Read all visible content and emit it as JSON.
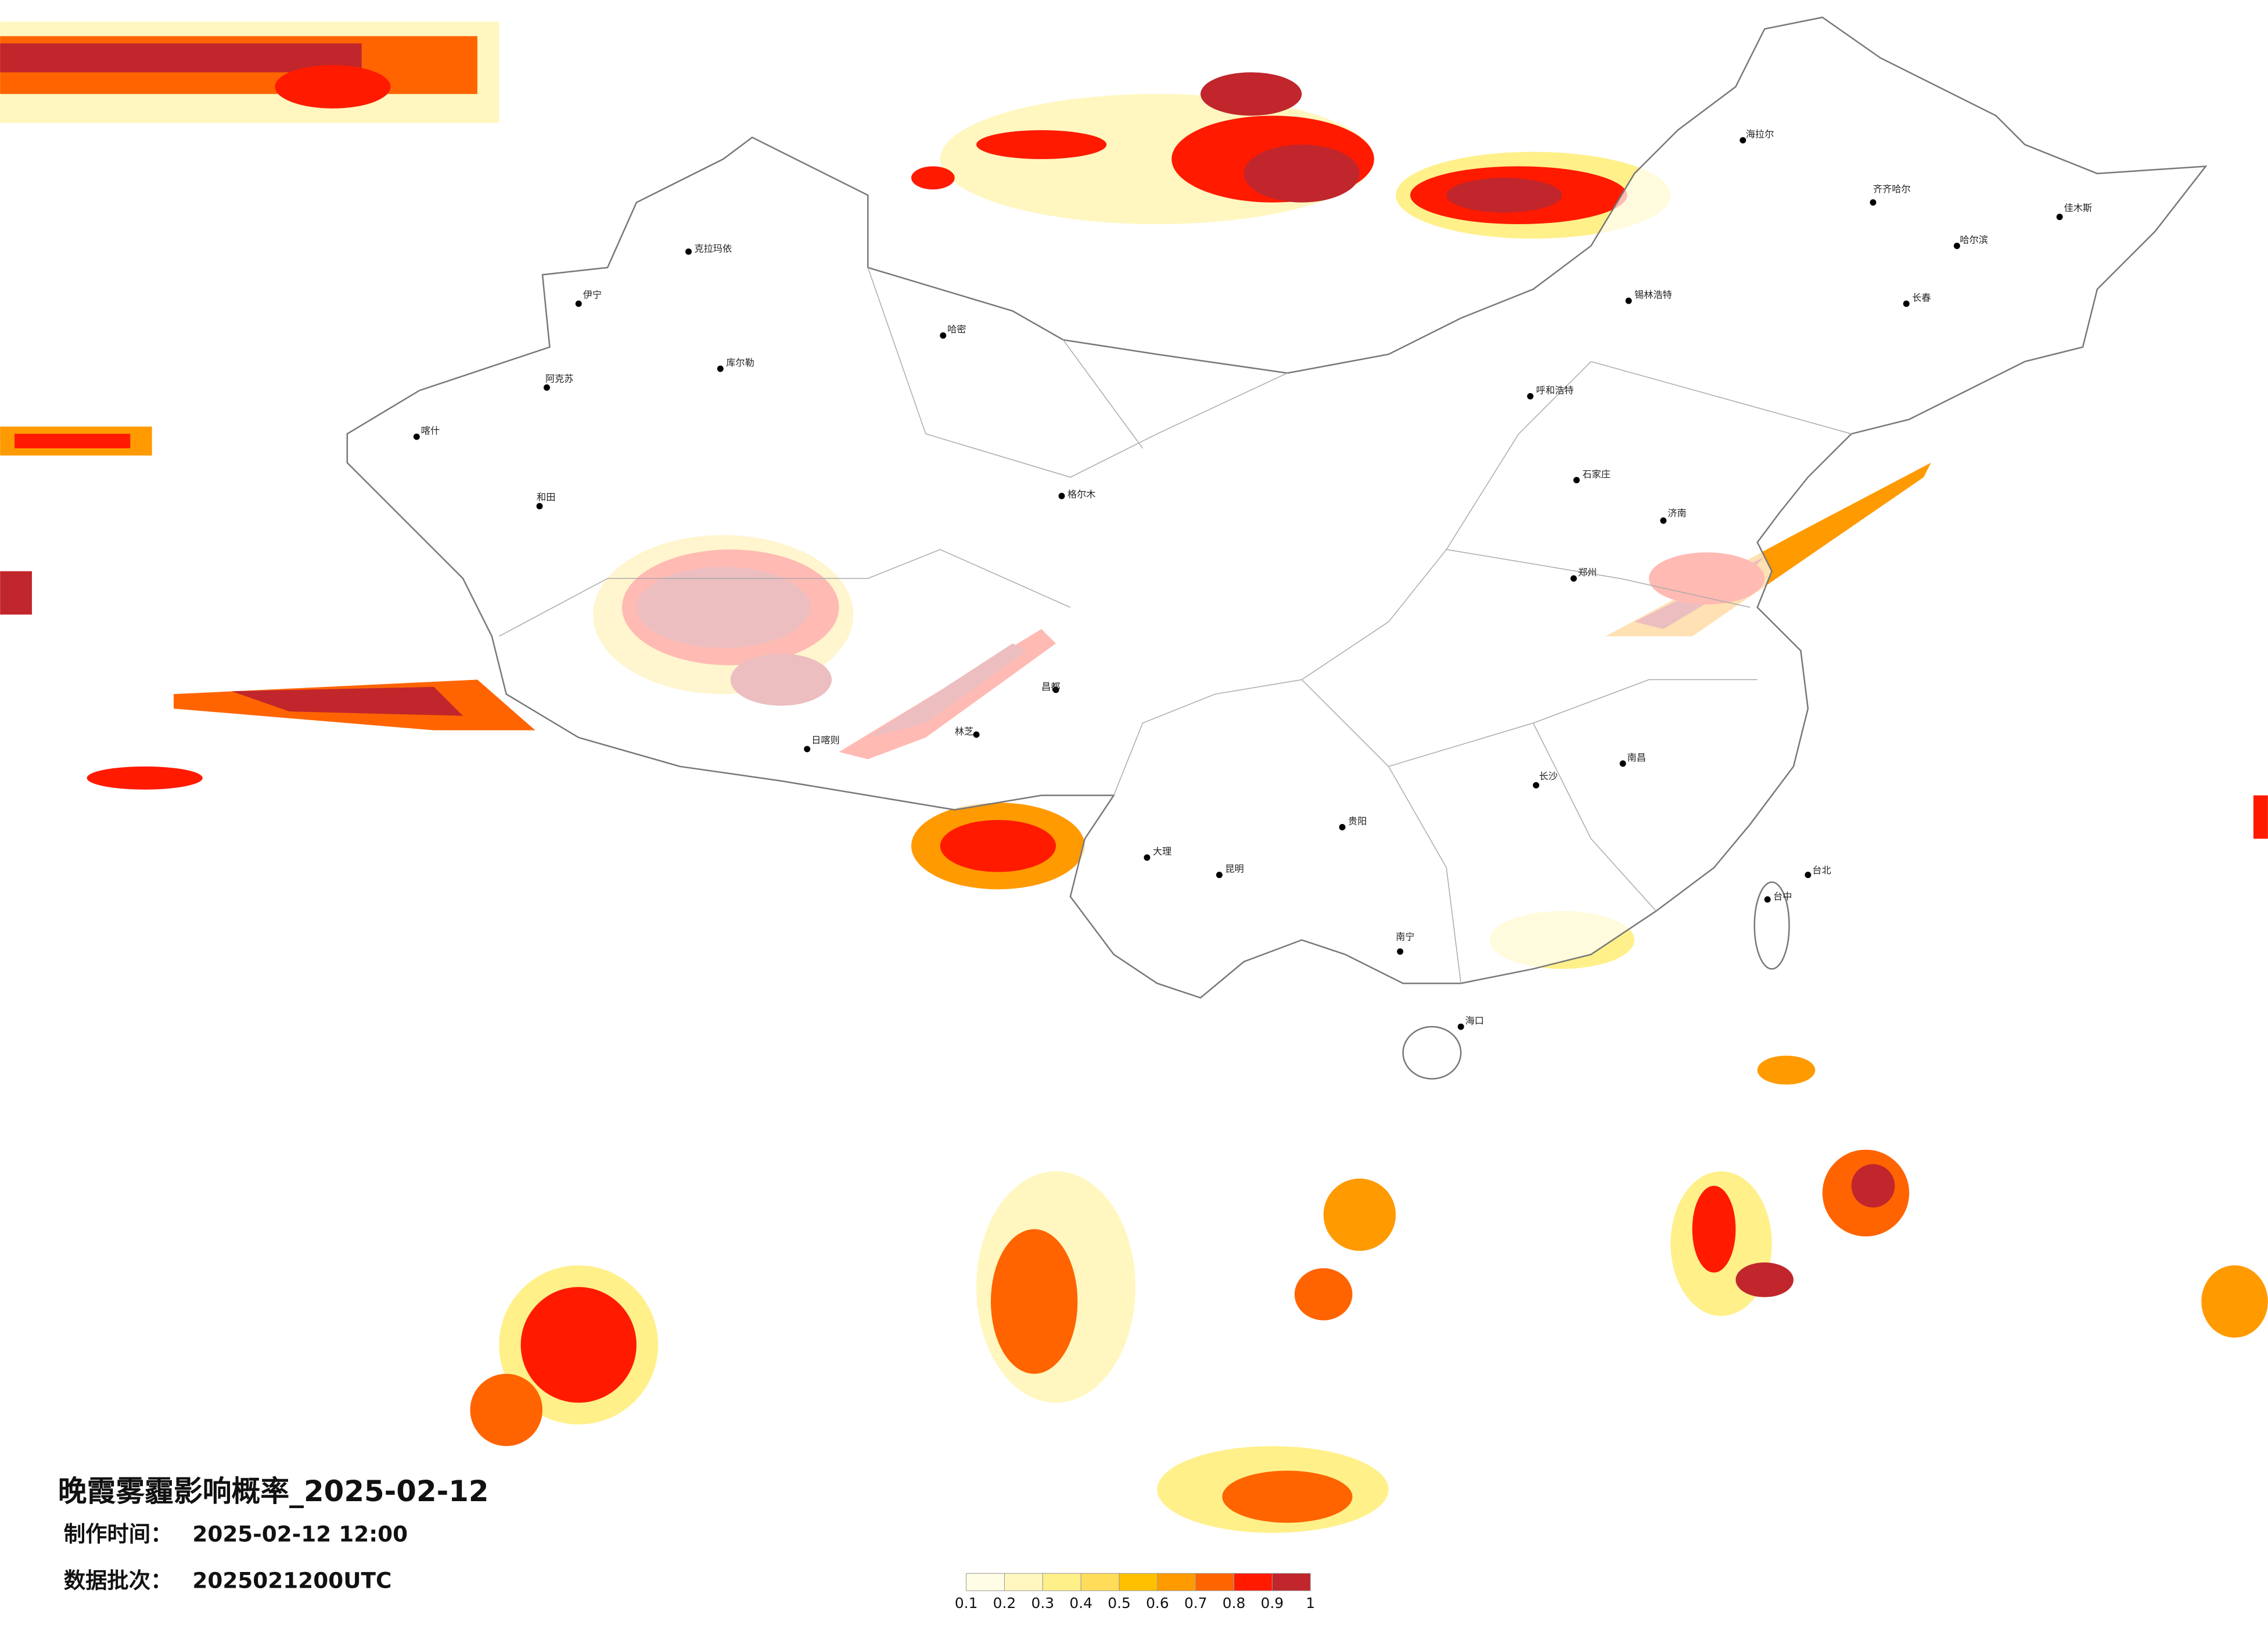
{
  "title": "晚霞雾霾影响概率_2025-02-12",
  "info": [
    {
      "label": "制作时间：",
      "value": "2025-02-12 12:00"
    },
    {
      "label": "数据批次：",
      "value": "2025021200UTC"
    }
  ],
  "legend": {
    "ticks": [
      0.1,
      0.2,
      0.3,
      0.4,
      0.5,
      0.6,
      0.7,
      0.8,
      0.9,
      1
    ],
    "colors": [
      "#fffde6",
      "#fff7bf",
      "#fff08a",
      "#ffdc5a",
      "#ffc000",
      "#ff9a00",
      "#ff6400",
      "#ff1a00",
      "#c0262c"
    ]
  },
  "cities": [
    "克拉玛依",
    "伊宁",
    "喀什",
    "和田",
    "阿克苏",
    "哈密",
    "海拉尔",
    "齐齐哈尔",
    "哈尔滨",
    "长春",
    "呼和浩特",
    "锡林浩特",
    "石家庄",
    "济南",
    "郑州",
    "日喀则",
    "林芝",
    "昌都",
    "大理",
    "昆明",
    "贵阳",
    "南宁",
    "海口",
    "台北",
    "台中",
    "南昌",
    "长沙",
    "佳木斯",
    "库尔勒",
    "格尔木"
  ]
}
